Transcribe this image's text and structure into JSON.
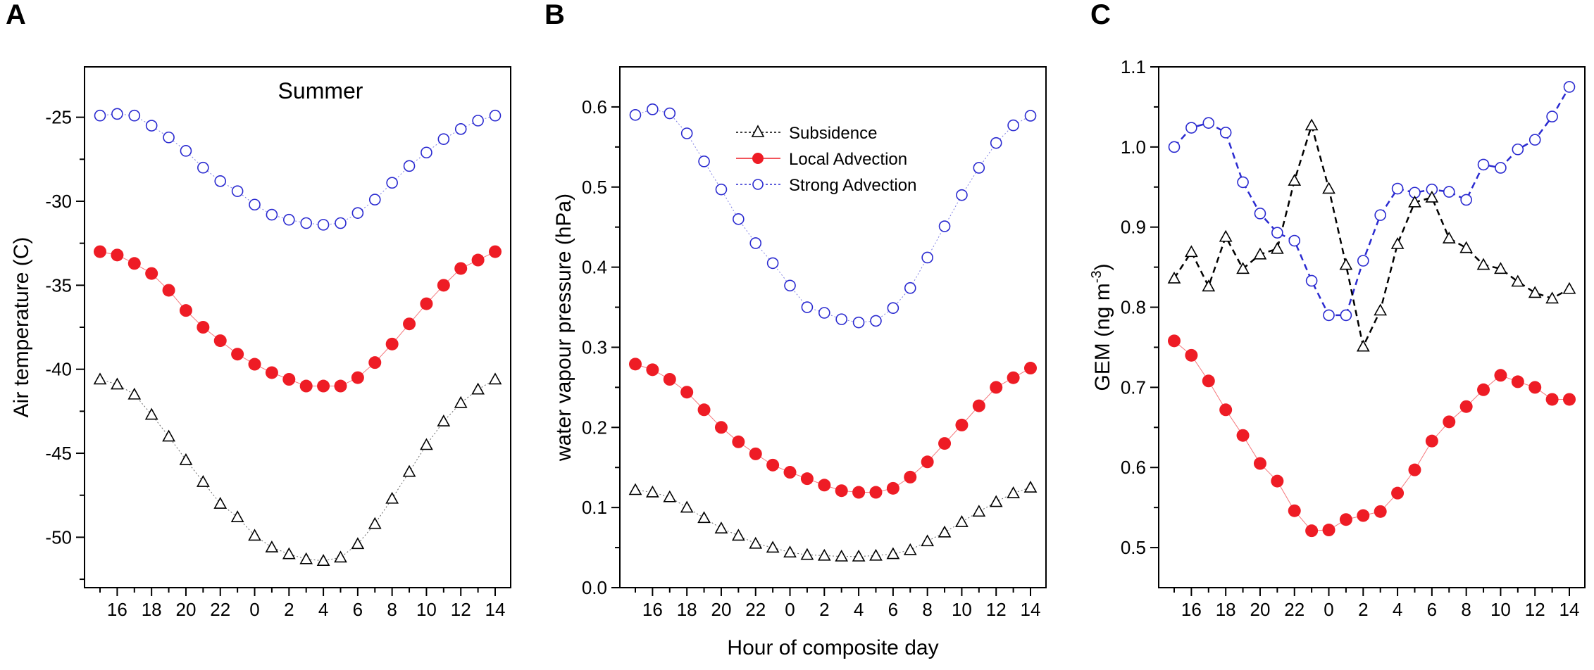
{
  "x_categories": [
    "15",
    "16",
    "17",
    "18",
    "19",
    "20",
    "21",
    "22",
    "23",
    "0",
    "1",
    "2",
    "3",
    "4",
    "5",
    "6",
    "7",
    "8",
    "9",
    "10",
    "11",
    "12",
    "13",
    "14"
  ],
  "x_tick_labels": [
    "16",
    "18",
    "20",
    "22",
    "0",
    "2",
    "4",
    "6",
    "8",
    "10",
    "12",
    "14"
  ],
  "shared_xlabel": "Hour of composite day",
  "legend": {
    "subsidence": "Subsidence",
    "local": "Local Advection",
    "strong": "Strong Advection"
  },
  "colors": {
    "black": "#000000",
    "red": "#ee1c25",
    "blue": "#2a2ad0"
  },
  "chart_data": [
    {
      "panel": "A",
      "type": "scatter",
      "title": "Summer",
      "ylabel": "Air temperature (C)",
      "xlabel": "",
      "ylim": [
        -53,
        -22
      ],
      "yticks": [
        -25,
        -30,
        -35,
        -40,
        -45,
        -50
      ],
      "ytick_labels": [
        "-25",
        "-30",
        "-35",
        "-40",
        "-45",
        "-50"
      ],
      "series": [
        {
          "name": "Strong Advection",
          "values": [
            -24.9,
            -24.8,
            -24.9,
            -25.5,
            -26.2,
            -27.0,
            -28.0,
            -28.8,
            -29.4,
            -30.2,
            -30.8,
            -31.1,
            -31.3,
            -31.4,
            -31.3,
            -30.7,
            -29.9,
            -28.9,
            -27.9,
            -27.1,
            -26.3,
            -25.7,
            -25.2,
            -24.9
          ]
        },
        {
          "name": "Local Advection",
          "values": [
            -33.0,
            -33.2,
            -33.7,
            -34.3,
            -35.3,
            -36.5,
            -37.5,
            -38.3,
            -39.1,
            -39.7,
            -40.2,
            -40.6,
            -41.0,
            -41.0,
            -41.0,
            -40.5,
            -39.6,
            -38.5,
            -37.3,
            -36.1,
            -35.0,
            -34.0,
            -33.5,
            -33.0
          ]
        },
        {
          "name": "Subsidence",
          "values": [
            -40.6,
            -40.9,
            -41.5,
            -42.7,
            -44.0,
            -45.4,
            -46.7,
            -48.0,
            -48.8,
            -49.9,
            -50.6,
            -51.0,
            -51.3,
            -51.4,
            -51.2,
            -50.4,
            -49.2,
            -47.7,
            -46.1,
            -44.5,
            -43.1,
            -42.0,
            -41.2,
            -40.6
          ]
        }
      ]
    },
    {
      "panel": "B",
      "type": "scatter",
      "title": "",
      "ylabel": "water vapour pressure (hPa)",
      "xlabel": "Hour of composite day",
      "ylim": [
        0.0,
        0.65
      ],
      "yticks": [
        0.0,
        0.1,
        0.2,
        0.3,
        0.4,
        0.5,
        0.6
      ],
      "ytick_labels": [
        "0.0",
        "0.1",
        "0.2",
        "0.3",
        "0.4",
        "0.5",
        "0.6"
      ],
      "series": [
        {
          "name": "Strong Advection",
          "values": [
            0.59,
            0.597,
            0.592,
            0.567,
            0.532,
            0.497,
            0.46,
            0.43,
            0.405,
            0.377,
            0.35,
            0.343,
            0.335,
            0.331,
            0.333,
            0.349,
            0.374,
            0.412,
            0.451,
            0.49,
            0.524,
            0.555,
            0.577,
            0.589
          ]
        },
        {
          "name": "Local Advection",
          "values": [
            0.279,
            0.272,
            0.26,
            0.244,
            0.222,
            0.2,
            0.182,
            0.167,
            0.153,
            0.144,
            0.136,
            0.128,
            0.121,
            0.119,
            0.119,
            0.124,
            0.138,
            0.157,
            0.18,
            0.203,
            0.227,
            0.25,
            0.262,
            0.274
          ]
        },
        {
          "name": "Subsidence",
          "values": [
            0.122,
            0.119,
            0.113,
            0.1,
            0.087,
            0.074,
            0.065,
            0.055,
            0.05,
            0.044,
            0.041,
            0.04,
            0.039,
            0.039,
            0.04,
            0.042,
            0.047,
            0.058,
            0.069,
            0.082,
            0.095,
            0.107,
            0.118,
            0.125
          ]
        }
      ]
    },
    {
      "panel": "C",
      "type": "line",
      "title": "",
      "ylabel": "GEM (ng m-3)",
      "xlabel": "",
      "ylim": [
        0.45,
        1.1
      ],
      "yticks": [
        0.5,
        0.6,
        0.7,
        0.8,
        0.9,
        1.0,
        1.1
      ],
      "ytick_labels": [
        "0.5",
        "0.6",
        "0.7",
        "0.8",
        "0.9",
        "1.0",
        "1.1"
      ],
      "series": [
        {
          "name": "Strong Advection",
          "values": [
            1.0,
            1.024,
            1.03,
            1.018,
            0.956,
            0.917,
            0.893,
            0.883,
            0.833,
            0.79,
            0.79,
            0.858,
            0.915,
            0.948,
            0.943,
            0.947,
            0.944,
            0.934,
            0.978,
            0.974,
            0.997,
            1.009,
            1.038,
            1.075
          ]
        },
        {
          "name": "Subsidence",
          "values": [
            0.836,
            0.869,
            0.826,
            0.888,
            0.848,
            0.866,
            0.873,
            0.958,
            1.027,
            0.948,
            0.853,
            0.751,
            0.796,
            0.879,
            0.931,
            0.937,
            0.886,
            0.874,
            0.853,
            0.848,
            0.832,
            0.818,
            0.811,
            0.823
          ]
        },
        {
          "name": "Local Advection",
          "values": [
            0.758,
            0.74,
            0.708,
            0.672,
            0.64,
            0.605,
            0.583,
            0.546,
            0.521,
            0.522,
            0.535,
            0.54,
            0.545,
            0.568,
            0.597,
            0.633,
            0.657,
            0.676,
            0.697,
            0.715,
            0.707,
            0.7,
            0.685,
            0.685
          ]
        }
      ]
    }
  ]
}
